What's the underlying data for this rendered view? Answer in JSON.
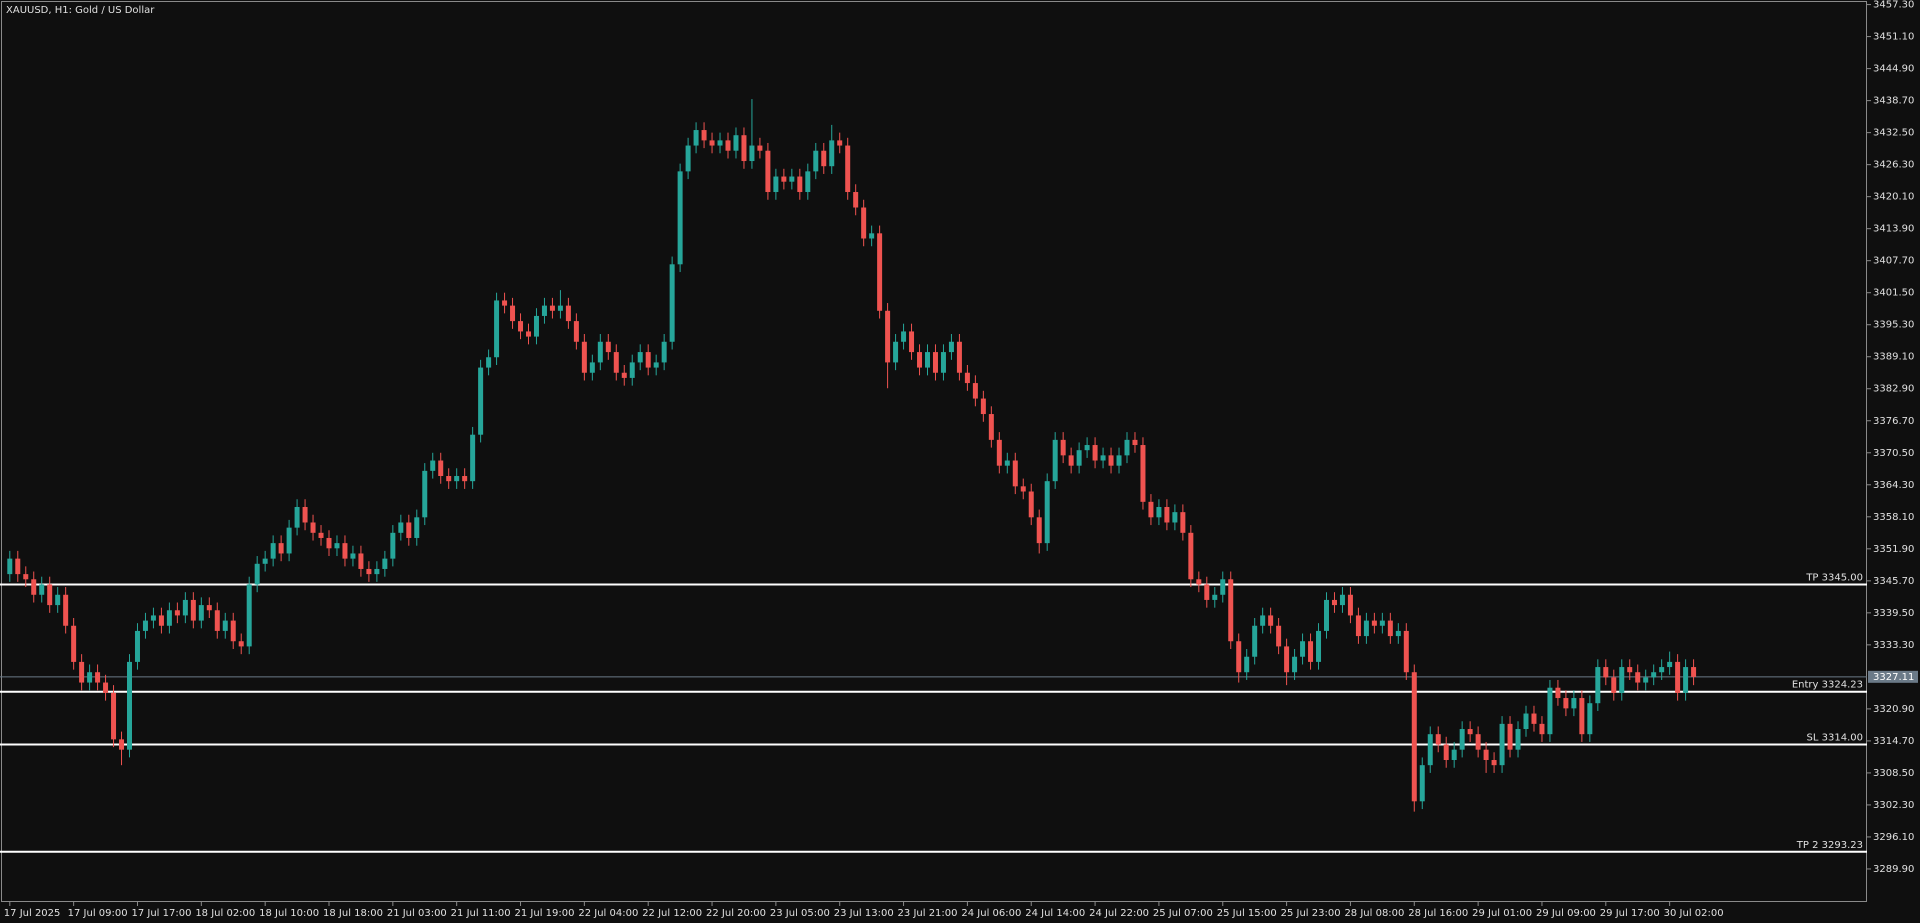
{
  "chart_data": {
    "type": "candlestick",
    "title": "XAUUSD, H1:  Gold / US Dollar",
    "up_color": "#26a69a",
    "down_color": "#ef5350",
    "ylim": [
      3283.5,
      3457.8
    ],
    "yticks": [
      {
        "value": 3457.3,
        "label": "3457.30"
      },
      {
        "value": 3451.1,
        "label": "3451.10"
      },
      {
        "value": 3444.9,
        "label": "3444.90"
      },
      {
        "value": 3438.7,
        "label": "3438.70"
      },
      {
        "value": 3432.5,
        "label": "3432.50"
      },
      {
        "value": 3426.3,
        "label": "3426.30"
      },
      {
        "value": 3420.1,
        "label": "3420.10"
      },
      {
        "value": 3413.9,
        "label": "3413.90"
      },
      {
        "value": 3407.7,
        "label": "3407.70"
      },
      {
        "value": 3401.5,
        "label": "3401.50"
      },
      {
        "value": 3395.3,
        "label": "3395.30"
      },
      {
        "value": 3389.1,
        "label": "3389.10"
      },
      {
        "value": 3382.9,
        "label": "3382.90"
      },
      {
        "value": 3376.7,
        "label": "3376.70"
      },
      {
        "value": 3370.5,
        "label": "3370.50"
      },
      {
        "value": 3364.3,
        "label": "3364.30"
      },
      {
        "value": 3358.1,
        "label": "3358.10"
      },
      {
        "value": 3351.9,
        "label": "3351.90"
      },
      {
        "value": 3345.7,
        "label": "3345.70"
      },
      {
        "value": 3339.5,
        "label": "3339.50"
      },
      {
        "value": 3333.3,
        "label": "3333.30"
      },
      {
        "value": 3320.9,
        "label": "3320.90"
      },
      {
        "value": 3314.7,
        "label": "3314.70"
      },
      {
        "value": 3308.5,
        "label": "3308.50"
      },
      {
        "value": 3302.3,
        "label": "3302.30"
      },
      {
        "value": 3296.1,
        "label": "3296.10"
      },
      {
        "value": 3289.9,
        "label": "3289.90"
      }
    ],
    "last_price": 3327.11,
    "levels_color": "#ffffff",
    "levels": [
      {
        "label": "TP 3345.00",
        "value": 3345
      },
      {
        "label": "Entry 3324.23",
        "value": 3324.23
      },
      {
        "label": "SL 3314.00",
        "value": 3314
      },
      {
        "label": "TP 2 3293.23",
        "value": 3293.23
      }
    ],
    "categories": [
      "17 Jul 2025",
      null,
      null,
      null,
      null,
      null,
      null,
      null,
      "17 Jul 09:00",
      null,
      null,
      null,
      null,
      null,
      null,
      null,
      "17 Jul 17:00",
      null,
      null,
      null,
      null,
      null,
      null,
      null,
      "18 Jul 02:00",
      null,
      null,
      null,
      null,
      null,
      null,
      null,
      "18 Jul 10:00",
      null,
      null,
      null,
      null,
      null,
      null,
      null,
      "18 Jul 18:00",
      null,
      null,
      null,
      null,
      null,
      null,
      null,
      "21 Jul 03:00",
      null,
      null,
      null,
      null,
      null,
      null,
      null,
      "21 Jul 11:00",
      null,
      null,
      null,
      null,
      null,
      null,
      null,
      "21 Jul 19:00",
      null,
      null,
      null,
      null,
      null,
      null,
      null,
      "22 Jul 04:00",
      null,
      null,
      null,
      null,
      null,
      null,
      null,
      "22 Jul 12:00",
      null,
      null,
      null,
      null,
      null,
      null,
      null,
      "22 Jul 20:00",
      null,
      null,
      null,
      null,
      null,
      null,
      null,
      "23 Jul 05:00",
      null,
      null,
      null,
      null,
      null,
      null,
      null,
      "23 Jul 13:00",
      null,
      null,
      null,
      null,
      null,
      null,
      null,
      "23 Jul 21:00",
      null,
      null,
      null,
      null,
      null,
      null,
      null,
      "24 Jul 06:00",
      null,
      null,
      null,
      null,
      null,
      null,
      null,
      "24 Jul 14:00",
      null,
      null,
      null,
      null,
      null,
      null,
      null,
      "24 Jul 22:00",
      null,
      null,
      null,
      null,
      null,
      null,
      null,
      "25 Jul 07:00",
      null,
      null,
      null,
      null,
      null,
      null,
      null,
      "25 Jul 15:00",
      null,
      null,
      null,
      null,
      null,
      null,
      null,
      "25 Jul 23:00",
      null,
      null,
      null,
      null,
      null,
      null,
      null,
      "28 Jul 08:00",
      null,
      null,
      null,
      null,
      null,
      null,
      null,
      "28 Jul 16:00",
      null,
      null,
      null,
      null,
      null,
      null,
      null,
      "29 Jul 01:00",
      null,
      null,
      null,
      null,
      null,
      null,
      null,
      "29 Jul 09:00",
      null,
      null,
      null,
      null,
      null,
      null,
      null,
      "29 Jul 17:00",
      null,
      null,
      null,
      null,
      null,
      null,
      null,
      "30 Jul 02:00",
      null,
      null,
      null
    ],
    "open": [
      3347,
      3350,
      3347,
      3346,
      3343,
      3345,
      3341,
      3343,
      3337,
      3330,
      3326,
      3328,
      3326,
      3324,
      3315,
      3313,
      3330,
      3336,
      3338,
      3339,
      3337,
      3340,
      3339,
      3342,
      3338,
      3341,
      3340,
      3336,
      3338,
      3334,
      3333,
      3345,
      3349,
      3350,
      3353,
      3351,
      3356,
      3360,
      3357,
      3355,
      3354,
      3352,
      3353,
      3350,
      3351,
      3348,
      3347,
      3348,
      3350,
      3355,
      3357,
      3354,
      3358,
      3367,
      3369,
      3366,
      3365,
      3366,
      3365,
      3374,
      3387,
      3389,
      3400,
      3399,
      3396,
      3394,
      3393,
      3397,
      3399,
      3398,
      3399,
      3396,
      3392,
      3386,
      3388,
      3392,
      3390,
      3386,
      3385,
      3388,
      3390,
      3387,
      3388,
      3392,
      3407,
      3425,
      3430,
      3433,
      3431,
      3430,
      3431,
      3429,
      3432,
      3427,
      3430,
      3429,
      3421,
      3424,
      3423,
      3424,
      3421,
      3425,
      3429,
      3426,
      3431,
      3430,
      3421,
      3418,
      3412,
      3413,
      3398,
      3388,
      3392,
      3394,
      3390,
      3387,
      3390,
      3386,
      3390,
      3392,
      3386,
      3384,
      3381,
      3378,
      3373,
      3368,
      3369,
      3364,
      3363,
      3358,
      3353,
      3365,
      3373,
      3370,
      3368,
      3371,
      3372,
      3369,
      3370,
      3368,
      3370,
      3373,
      3372,
      3361,
      3358,
      3360,
      3357,
      3359,
      3355,
      3346,
      3345,
      3342,
      3343,
      3346,
      3334,
      3328,
      3331,
      3337,
      3339,
      3337,
      3333,
      3328,
      3331,
      3334,
      3330,
      3336,
      3342,
      3341,
      3343,
      3339,
      3335,
      3338,
      3337,
      3338,
      3335,
      3336,
      3328,
      3303,
      3310,
      3316,
      3314,
      3311,
      3313,
      3317,
      3316,
      3313,
      3311,
      3310,
      3318,
      3313,
      3317,
      3320,
      3318,
      3316,
      3325,
      3323,
      3321,
      3323,
      3316,
      3322,
      3329,
      3327,
      3324,
      3329,
      3328,
      3326,
      3327,
      3328,
      3329,
      3330,
      3324,
      3329
    ],
    "high": [
      3351.5,
      3351.5,
      3348.5,
      3347.5,
      3346.5,
      3346.5,
      3344.5,
      3344.5,
      3338.5,
      3331.5,
      3329.5,
      3329.5,
      3327.5,
      3325.5,
      3316.5,
      3331.5,
      3337.5,
      3339.5,
      3340.5,
      3340.5,
      3341.5,
      3341.5,
      3343.5,
      3343.5,
      3342.5,
      3342.5,
      3341.5,
      3339.5,
      3339.5,
      3335.5,
      3346.5,
      3350.5,
      3351.5,
      3354.5,
      3354.5,
      3357.5,
      3361.5,
      3361.5,
      3358.5,
      3356.5,
      3355.5,
      3354.5,
      3354.5,
      3352.5,
      3352.5,
      3349.5,
      3349.5,
      3351.5,
      3356.5,
      3358.5,
      3358.5,
      3359.5,
      3368.5,
      3370.5,
      3370.5,
      3367.5,
      3367.5,
      3367.5,
      3375.5,
      3388.5,
      3390.5,
      3401.5,
      3401.5,
      3400.5,
      3397.5,
      3395.5,
      3398.5,
      3400.5,
      3400.5,
      3402,
      3400.5,
      3397.5,
      3393.5,
      3389.5,
      3393.5,
      3393.5,
      3391.5,
      3387.5,
      3389.5,
      3391.5,
      3391.5,
      3389.5,
      3393.5,
      3408.5,
      3426.5,
      3431.5,
      3434.5,
      3434.5,
      3432.5,
      3432.5,
      3432.5,
      3433.5,
      3433.5,
      3439,
      3431.5,
      3430.5,
      3425.5,
      3425.5,
      3425.5,
      3425.5,
      3426.5,
      3430.5,
      3430.5,
      3434,
      3432.5,
      3431.5,
      3422.5,
      3419.5,
      3414.5,
      3414.5,
      3399.5,
      3393.5,
      3395.5,
      3395.5,
      3391.5,
      3391.5,
      3391.5,
      3391.5,
      3393.5,
      3393.5,
      3387.5,
      3385.5,
      3382.5,
      3379.5,
      3374.5,
      3370.5,
      3370.5,
      3365.5,
      3364.5,
      3359.5,
      3366.5,
      3374.5,
      3374.5,
      3371.5,
      3372.5,
      3373.5,
      3373.5,
      3371.5,
      3371.5,
      3371.5,
      3374.5,
      3374.5,
      3373.5,
      3362.5,
      3361.5,
      3361.5,
      3360.5,
      3360.5,
      3356.5,
      3347.5,
      3346.5,
      3344.5,
      3347.5,
      3347.5,
      3335.5,
      3332.5,
      3338.5,
      3340.5,
      3340.5,
      3338.5,
      3334.5,
      3332.5,
      3335.5,
      3335.5,
      3337.5,
      3343.5,
      3343.5,
      3344.5,
      3344.5,
      3340.5,
      3339.5,
      3339.5,
      3339.5,
      3339.5,
      3337.5,
      3337.5,
      3329.5,
      3311.5,
      3317.5,
      3317.5,
      3315.5,
      3314.5,
      3318.5,
      3318.5,
      3317.5,
      3314.5,
      3312.5,
      3319.5,
      3319.5,
      3318.5,
      3321.5,
      3321.5,
      3319.5,
      3326.5,
      3326.5,
      3324.5,
      3324.5,
      3324.5,
      3323.5,
      3330.5,
      3330.5,
      3328.5,
      3330.5,
      3330.5,
      3329.5,
      3328.5,
      3329.5,
      3330.5,
      3332,
      3331.5,
      3330.5,
      3330.5
    ],
    "low": [
      3345.5,
      3345.5,
      3344.5,
      3341.5,
      3341.5,
      3339.5,
      3339.5,
      3335.5,
      3328.5,
      3324.5,
      3324.5,
      3324.5,
      3322.5,
      3313.5,
      3310,
      3311.5,
      3328.5,
      3334.5,
      3336.5,
      3335.5,
      3335.5,
      3337.5,
      3337.5,
      3336.5,
      3336.5,
      3338.5,
      3334.5,
      3334.5,
      3332.5,
      3331.5,
      3331.5,
      3343.5,
      3347.5,
      3348.5,
      3349.5,
      3349.5,
      3354.5,
      3355.5,
      3353.5,
      3352.5,
      3350.5,
      3350.5,
      3348.5,
      3348.5,
      3346.5,
      3345.5,
      3345.5,
      3346.5,
      3348.5,
      3353.5,
      3352.5,
      3352.5,
      3356.5,
      3365.5,
      3364.5,
      3363.5,
      3363.5,
      3363.5,
      3363.5,
      3372.5,
      3385.5,
      3387.5,
      3397.5,
      3394.5,
      3392.5,
      3391.5,
      3391.5,
      3395.5,
      3396.5,
      3396.5,
      3394.5,
      3390.5,
      3384.5,
      3384.5,
      3386.5,
      3388.5,
      3384.5,
      3383.5,
      3383.5,
      3386.5,
      3385.5,
      3385.5,
      3386.5,
      3390.5,
      3405.5,
      3423.5,
      3428.5,
      3429.5,
      3428.5,
      3428.5,
      3427.5,
      3427.5,
      3425.5,
      3425.5,
      3427.5,
      3419.5,
      3419.5,
      3421.5,
      3421.5,
      3419.5,
      3419.5,
      3423.5,
      3424.5,
      3424.5,
      3428.5,
      3419.5,
      3416.5,
      3410.5,
      3410.5,
      3396.5,
      3383,
      3386.5,
      3390.5,
      3388.5,
      3385.5,
      3385.5,
      3384.5,
      3384.5,
      3388.5,
      3384.5,
      3382.5,
      3379.5,
      3376.5,
      3371.5,
      3366.5,
      3366.5,
      3362.5,
      3361.5,
      3356.5,
      3351,
      3351.5,
      3363.5,
      3368.5,
      3366.5,
      3366.5,
      3369.5,
      3367.5,
      3367.5,
      3366.5,
      3366.5,
      3368.5,
      3370.5,
      3359.5,
      3356.5,
      3356.5,
      3355.5,
      3355.5,
      3353.5,
      3344.5,
      3343.5,
      3340.5,
      3340.5,
      3341.5,
      3332.5,
      3326,
      3326.5,
      3329.5,
      3335.5,
      3335.5,
      3331.5,
      3325.5,
      3326.5,
      3329.5,
      3328.5,
      3328.5,
      3334.5,
      3339.5,
      3339.5,
      3337.5,
      3333.5,
      3333.5,
      3335.5,
      3335.5,
      3333.5,
      3333.5,
      3326.5,
      3301,
      3301.5,
      3308.5,
      3312.5,
      3309.5,
      3309.5,
      3311.5,
      3314.5,
      3311.5,
      3308.5,
      3308.5,
      3308.5,
      3311.5,
      3311.5,
      3315.5,
      3316.5,
      3314.5,
      3314.5,
      3321.5,
      3319.5,
      3319.5,
      3314.5,
      3314.5,
      3320.5,
      3325.5,
      3322.5,
      3322.5,
      3326.5,
      3324.5,
      3324.5,
      3325.5,
      3326.5,
      3327.5,
      3322.5,
      3322.5,
      3325.5
    ],
    "close": [
      3350,
      3347,
      3346,
      3343,
      3345,
      3341,
      3343,
      3337,
      3330,
      3326,
      3328,
      3326,
      3324,
      3315,
      3313,
      3330,
      3336,
      3338,
      3339,
      3337,
      3340,
      3339,
      3342,
      3338,
      3341,
      3340,
      3336,
      3338,
      3334,
      3333,
      3345,
      3349,
      3350,
      3353,
      3351,
      3356,
      3360,
      3357,
      3355,
      3354,
      3352,
      3353,
      3350,
      3351,
      3348,
      3347,
      3348,
      3350,
      3355,
      3357,
      3354,
      3358,
      3367,
      3369,
      3366,
      3365,
      3366,
      3365,
      3374,
      3387,
      3389,
      3400,
      3399,
      3396,
      3394,
      3393,
      3397,
      3399,
      3398,
      3399,
      3396,
      3392,
      3386,
      3388,
      3392,
      3390,
      3386,
      3385,
      3388,
      3390,
      3387,
      3388,
      3392,
      3407,
      3425,
      3430,
      3433,
      3431,
      3430,
      3431,
      3429,
      3432,
      3427,
      3430,
      3429,
      3421,
      3424,
      3423,
      3424,
      3421,
      3425,
      3429,
      3426,
      3431,
      3430,
      3421,
      3418,
      3412,
      3413,
      3398,
      3388,
      3392,
      3394,
      3390,
      3387,
      3390,
      3386,
      3390,
      3392,
      3386,
      3384,
      3381,
      3378,
      3373,
      3368,
      3369,
      3364,
      3363,
      3358,
      3353,
      3365,
      3373,
      3370,
      3368,
      3371,
      3372,
      3369,
      3370,
      3368,
      3370,
      3373,
      3372,
      3361,
      3358,
      3360,
      3357,
      3359,
      3355,
      3346,
      3345,
      3342,
      3343,
      3346,
      3334,
      3328,
      3331,
      3337,
      3339,
      3337,
      3333,
      3328,
      3331,
      3334,
      3330,
      3336,
      3342,
      3341,
      3343,
      3339,
      3335,
      3338,
      3337,
      3338,
      3335,
      3336,
      3328,
      3303,
      3310,
      3316,
      3314,
      3311,
      3313,
      3317,
      3316,
      3313,
      3311,
      3310,
      3318,
      3313,
      3317,
      3320,
      3318,
      3316,
      3325,
      3323,
      3321,
      3323,
      3316,
      3322,
      3329,
      3327,
      3324,
      3329,
      3328,
      3326,
      3327,
      3328,
      3329,
      3330,
      3324,
      3329,
      3327.1
    ]
  }
}
